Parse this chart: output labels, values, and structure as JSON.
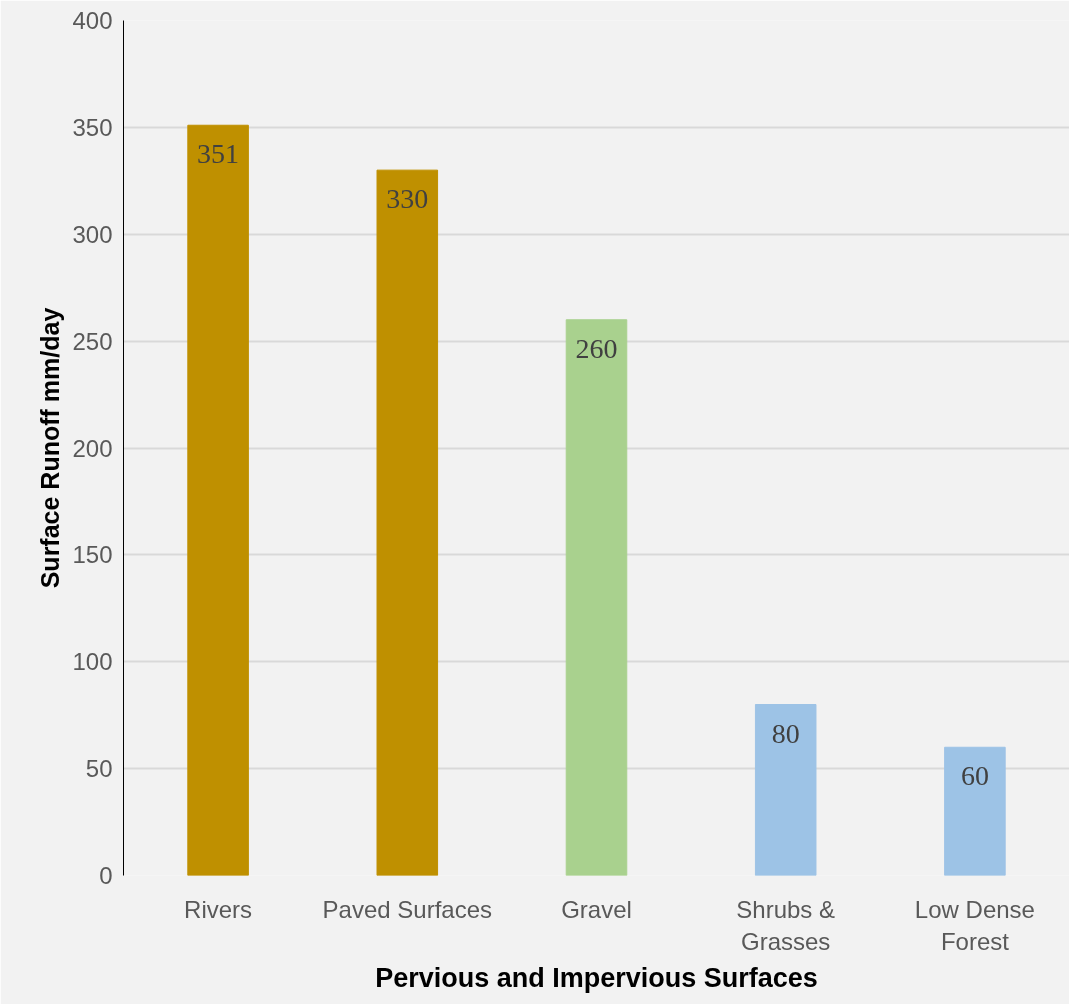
{
  "chart_data": {
    "type": "bar",
    "xlabel": "Pervious and Impervious Surfaces",
    "ylabel": "Surface Runoff mm/day",
    "categories": [
      "Rivers",
      "Paved Surfaces",
      "Gravel",
      "Shrubs &\nGrasses",
      "Low Dense\nForest"
    ],
    "values": [
      351,
      330,
      260,
      80,
      60
    ],
    "colors": [
      "#bf9000",
      "#bf9000",
      "#a9d18e",
      "#9dc3e6",
      "#9dc3e6"
    ],
    "ylim": [
      0,
      400
    ],
    "yticks": [
      0,
      50,
      100,
      150,
      200,
      250,
      300,
      350,
      400
    ],
    "grid": "y",
    "data_labels": true
  }
}
